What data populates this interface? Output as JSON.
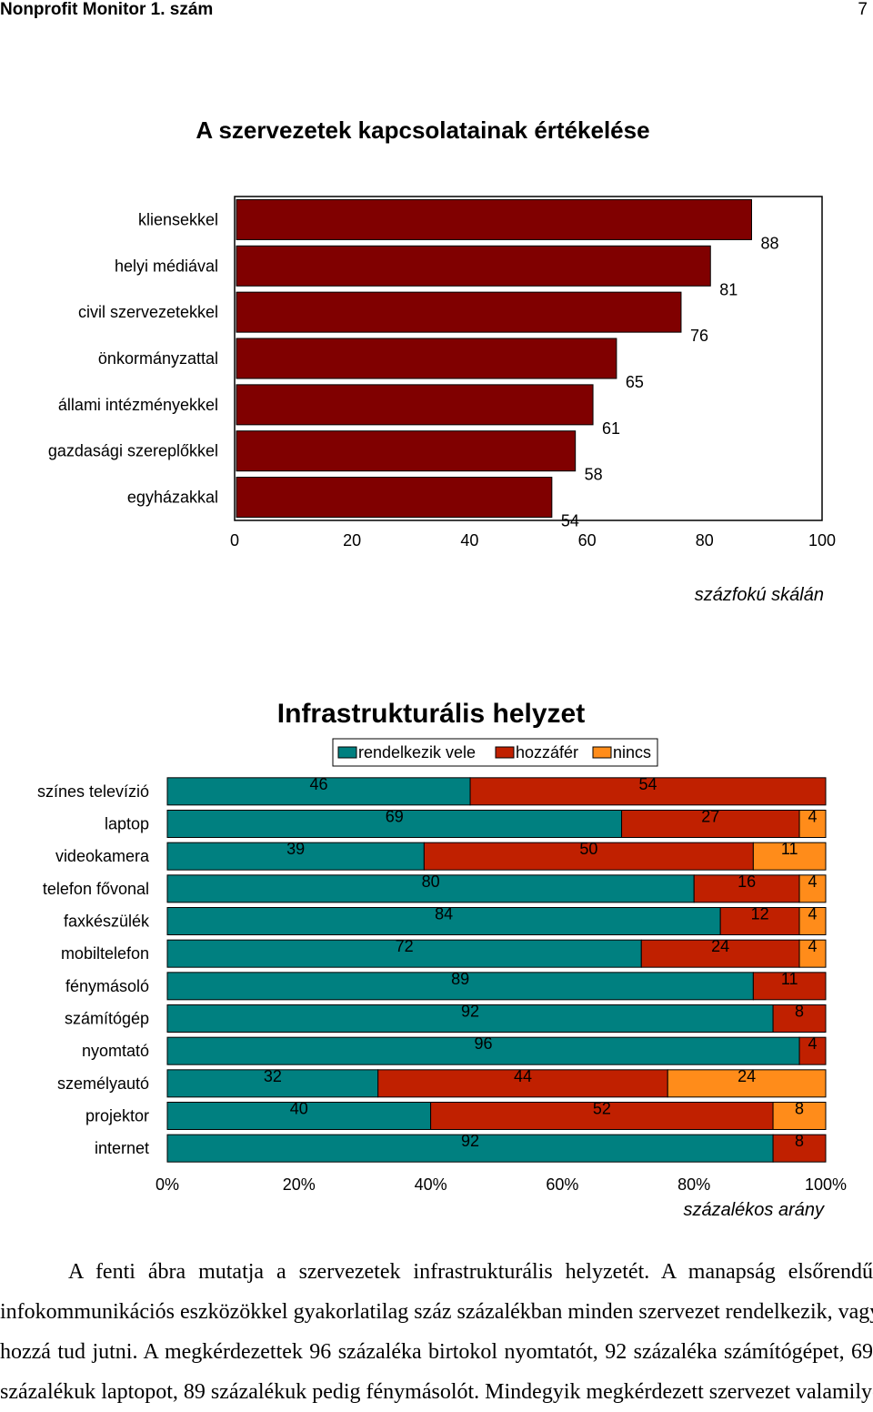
{
  "header": {
    "left": "Nonprofit Monitor 1. szám",
    "right": "7"
  },
  "chart1": {
    "chart_data": {
      "type": "bar",
      "orientation": "horizontal",
      "title": "A szervezetek kapcsolatainak értékelése",
      "categories": [
        "kliensekkel",
        "helyi médiával",
        "civil szervezetekkel",
        "önkormányzattal",
        "állami intézményekkel",
        "gazdasági szereplőkkel",
        "egyházakkal"
      ],
      "values": [
        88,
        81,
        76,
        65,
        61,
        58,
        54
      ],
      "xlim": [
        0,
        100
      ],
      "xticks": [
        "0",
        "20",
        "40",
        "60",
        "80",
        "100"
      ],
      "xlabel": "százfokú skálán",
      "bar_color": "#800000"
    }
  },
  "chart2": {
    "chart_data": {
      "type": "bar",
      "orientation": "horizontal",
      "stacked": true,
      "title": "Infrastrukturális helyzet",
      "categories": [
        "színes televízió",
        "laptop",
        "videokamera",
        "telefon fővonal",
        "faxkészülék",
        "mobiltelefon",
        "fénymásoló",
        "számítógép",
        "nyomtató",
        "személyautó",
        "projektor",
        "internet"
      ],
      "series": [
        {
          "name": "rendelkezik vele",
          "color": "#008080",
          "values": [
            46,
            69,
            39,
            80,
            84,
            72,
            89,
            92,
            96,
            32,
            40,
            92
          ]
        },
        {
          "name": "hozzáfér",
          "color": "#C02000",
          "values": [
            54,
            27,
            50,
            16,
            12,
            24,
            11,
            8,
            4,
            44,
            52,
            8
          ]
        },
        {
          "name": "nincs",
          "color": "#FF8C1A",
          "values": [
            0,
            4,
            11,
            4,
            4,
            4,
            0,
            0,
            0,
            24,
            8,
            0
          ]
        }
      ],
      "xlim": [
        0,
        100
      ],
      "xticks": [
        "0%",
        "20%",
        "40%",
        "60%",
        "80%",
        "100%"
      ],
      "xlabel": "százalékos arány",
      "legend": "top"
    }
  },
  "paragraph": {
    "lines": [
      "A fenti ábra mutatja a szervezetek infrastrukturális helyzetét. A manapság elsőrendű",
      "infokommunikációs eszközökkel gyakorlatilag száz százalékban minden szervezet rendelkezik, vagy",
      "hozzá tud jutni. A megkérdezettek 96 százaléka birtokol nyomtatót, 92 százaléka számítógépet, 69",
      "százalékuk laptopot, 89 százalékuk pedig fénymásolót. Mindegyik megkérdezett szervezet valamilyen"
    ]
  }
}
